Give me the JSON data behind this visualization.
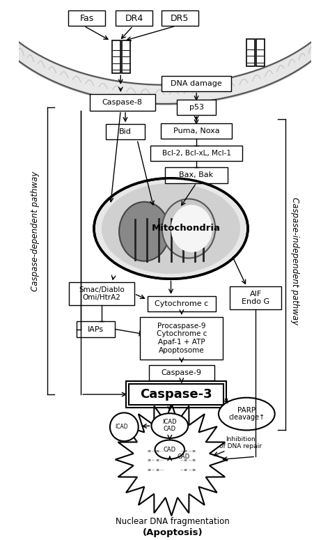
{
  "bg_color": "#ffffff",
  "side_label_left": "Caspase-dependent pathway",
  "side_label_right": "Caspase-independent pathway",
  "bottom_line1": "Nuclear DNA fragmentation",
  "bottom_line2": "(Apoptosis)"
}
